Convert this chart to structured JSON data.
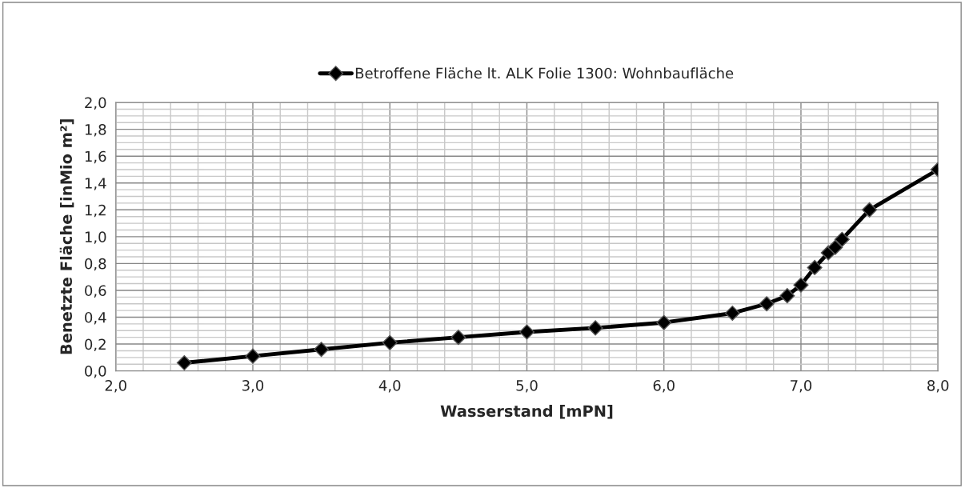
{
  "chart_data": {
    "type": "line",
    "xlabel": "Wasserstand [mPN]",
    "ylabel": "Benetzte Fläche [inMio m²]",
    "x": [
      2.5,
      3.0,
      3.5,
      4.0,
      4.5,
      5.0,
      5.5,
      6.0,
      6.5,
      6.75,
      6.9,
      7.0,
      7.1,
      7.2,
      7.25,
      7.3,
      7.5,
      8.0
    ],
    "series": [
      {
        "name": "Betroffene Fläche lt. ALK Folie 1300: Wohnbaufläche",
        "color": "#000000",
        "values": [
          0.06,
          0.11,
          0.16,
          0.21,
          0.25,
          0.29,
          0.32,
          0.36,
          0.43,
          0.5,
          0.56,
          0.64,
          0.77,
          0.88,
          0.92,
          0.98,
          1.2,
          1.5
        ]
      }
    ],
    "xlim": [
      2.0,
      8.0
    ],
    "xticks": [
      {
        "value": 2.0,
        "label": "2,0"
      },
      {
        "value": 3.0,
        "label": "3,0"
      },
      {
        "value": 4.0,
        "label": "4,0"
      },
      {
        "value": 5.0,
        "label": "5,0"
      },
      {
        "value": 6.0,
        "label": "6,0"
      },
      {
        "value": 7.0,
        "label": "7,0"
      },
      {
        "value": 8.0,
        "label": "8,0"
      }
    ],
    "ylim": [
      0.0,
      2.0
    ],
    "yticks": [
      {
        "value": 0.0,
        "label": "0,0"
      },
      {
        "value": 0.2,
        "label": "0,2"
      },
      {
        "value": 0.4,
        "label": "0,4"
      },
      {
        "value": 0.6,
        "label": "0,6"
      },
      {
        "value": 0.8,
        "label": "0,8"
      },
      {
        "value": 1.0,
        "label": "1,0"
      },
      {
        "value": 1.2,
        "label": "1,2"
      },
      {
        "value": 1.4,
        "label": "1,4"
      },
      {
        "value": 1.6,
        "label": "1,6"
      },
      {
        "value": 1.8,
        "label": "1,8"
      },
      {
        "value": 2.0,
        "label": "2,0"
      }
    ],
    "grid": true,
    "legend": "top",
    "marker": "diamond",
    "line_style": "solid"
  }
}
